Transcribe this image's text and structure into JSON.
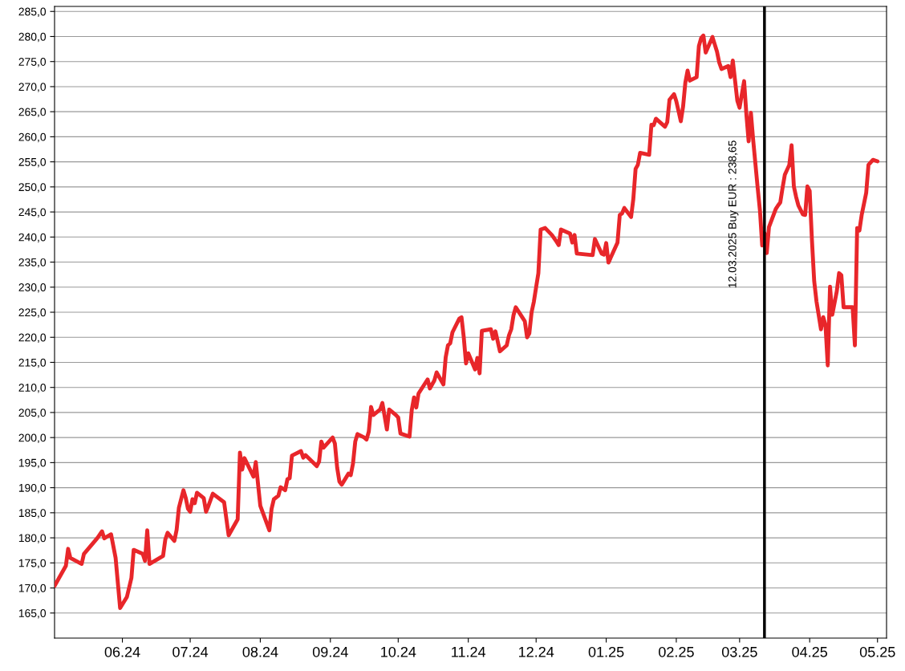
{
  "chart_data": {
    "type": "line",
    "color": "#e8262a",
    "grid": "y",
    "legend": false,
    "marker": "none",
    "line_style": "solid",
    "x": [
      "2024-05-02",
      "2024-05-07",
      "2024-05-08",
      "2024-05-09",
      "2024-05-14",
      "2024-05-15",
      "2024-05-21",
      "2024-05-23",
      "2024-05-24",
      "2024-05-27",
      "2024-05-29",
      "2024-05-31",
      "2024-06-03",
      "2024-06-05",
      "2024-06-06",
      "2024-06-10",
      "2024-06-11",
      "2024-06-12",
      "2024-06-13",
      "2024-06-19",
      "2024-06-20",
      "2024-06-21",
      "2024-06-24",
      "2024-06-25",
      "2024-06-26",
      "2024-06-28",
      "2024-06-29",
      "2024-06-30",
      "2024-07-01",
      "2024-07-02",
      "2024-07-03",
      "2024-07-04",
      "2024-07-07",
      "2024-07-08",
      "2024-07-09",
      "2024-07-11",
      "2024-07-16",
      "2024-07-18",
      "2024-07-22",
      "2024-07-23",
      "2024-07-24",
      "2024-07-25",
      "2024-07-29",
      "2024-07-30",
      "2024-08-01",
      "2024-08-05",
      "2024-08-06",
      "2024-08-07",
      "2024-08-09",
      "2024-08-10",
      "2024-08-12",
      "2024-08-13",
      "2024-08-14",
      "2024-08-15",
      "2024-08-19",
      "2024-08-20",
      "2024-08-21",
      "2024-08-26",
      "2024-08-27",
      "2024-08-28",
      "2024-08-29",
      "2024-09-02",
      "2024-09-03",
      "2024-09-04",
      "2024-09-05",
      "2024-09-06",
      "2024-09-09",
      "2024-09-10",
      "2024-09-11",
      "2024-09-12",
      "2024-09-13",
      "2024-09-16",
      "2024-09-17",
      "2024-09-18",
      "2024-09-19",
      "2024-09-20",
      "2024-09-23",
      "2024-09-24",
      "2024-09-26",
      "2024-09-27",
      "2024-09-30",
      "2024-10-01",
      "2024-10-02",
      "2024-10-06",
      "2024-10-07",
      "2024-10-08",
      "2024-10-09",
      "2024-10-10",
      "2024-10-14",
      "2024-10-15",
      "2024-10-17",
      "2024-10-18",
      "2024-10-21",
      "2024-10-22",
      "2024-10-23",
      "2024-10-24",
      "2024-10-25",
      "2024-10-28",
      "2024-10-29",
      "2024-10-30",
      "2024-10-31",
      "2024-11-01",
      "2024-11-04",
      "2024-11-05",
      "2024-11-06",
      "2024-11-07",
      "2024-11-11",
      "2024-11-12",
      "2024-11-13",
      "2024-11-15",
      "2024-11-18",
      "2024-11-19",
      "2024-11-20",
      "2024-11-21",
      "2024-11-22",
      "2024-11-25",
      "2024-11-26",
      "2024-11-27",
      "2024-11-28",
      "2024-11-29",
      "2024-11-30",
      "2024-12-01",
      "2024-12-02",
      "2024-12-03",
      "2024-12-05",
      "2024-12-08",
      "2024-12-10",
      "2024-12-11",
      "2024-12-12",
      "2024-12-16",
      "2024-12-17",
      "2024-12-18",
      "2024-12-19",
      "2024-12-26",
      "2024-12-27",
      "2024-12-30",
      "2024-12-31",
      "2025-01-01",
      "2025-01-02",
      "2025-01-06",
      "2025-01-07",
      "2025-01-08",
      "2025-01-09",
      "2025-01-12",
      "2025-01-13",
      "2025-01-14",
      "2025-01-15",
      "2025-01-16",
      "2025-01-20",
      "2025-01-21",
      "2025-01-22",
      "2025-01-23",
      "2025-01-27",
      "2025-01-28",
      "2025-01-29",
      "2025-01-31",
      "2025-02-01",
      "2025-02-03",
      "2025-02-04",
      "2025-02-05",
      "2025-02-06",
      "2025-02-07",
      "2025-02-10",
      "2025-02-11",
      "2025-02-12",
      "2025-02-13",
      "2025-02-14",
      "2025-02-17",
      "2025-02-19",
      "2025-02-20",
      "2025-02-21",
      "2025-02-24",
      "2025-02-25",
      "2025-02-26",
      "2025-02-27",
      "2025-02-28",
      "2025-03-01",
      "2025-03-02",
      "2025-03-03",
      "2025-03-04",
      "2025-03-05",
      "2025-03-06",
      "2025-03-07",
      "2025-03-08",
      "2025-03-09",
      "2025-03-10",
      "2025-03-11",
      "2025-03-12",
      "2025-03-13",
      "2025-03-14",
      "2025-03-15",
      "2025-03-17",
      "2025-03-18",
      "2025-03-19",
      "2025-03-20",
      "2025-03-21",
      "2025-03-23",
      "2025-03-24",
      "2025-03-25",
      "2025-03-26",
      "2025-03-27",
      "2025-03-29",
      "2025-03-30",
      "2025-03-31",
      "2025-04-01",
      "2025-04-02",
      "2025-04-03",
      "2025-04-04",
      "2025-04-06",
      "2025-04-07",
      "2025-04-08",
      "2025-04-09",
      "2025-04-10",
      "2025-04-11",
      "2025-04-13",
      "2025-04-14",
      "2025-04-15",
      "2025-04-16",
      "2025-04-20",
      "2025-04-21",
      "2025-04-22",
      "2025-04-23",
      "2025-04-24",
      "2025-04-26",
      "2025-04-27",
      "2025-04-29",
      "2025-05-01"
    ],
    "values": [
      170.4,
      174.4,
      177.8,
      176.0,
      174.8,
      176.8,
      180.0,
      181.3,
      179.9,
      180.7,
      176.0,
      166.0,
      168.2,
      172.0,
      177.6,
      176.8,
      175.4,
      181.5,
      174.8,
      176.4,
      179.7,
      181.0,
      179.4,
      181.6,
      186.0,
      189.5,
      188.0,
      185.8,
      185.2,
      187.7,
      186.9,
      189.0,
      187.9,
      185.2,
      186.3,
      188.8,
      187.1,
      180.5,
      183.7,
      197.0,
      193.6,
      195.9,
      192.2,
      195.1,
      186.4,
      181.5,
      185.8,
      187.7,
      188.4,
      190.1,
      189.5,
      191.7,
      191.9,
      196.4,
      197.3,
      196.0,
      196.5,
      194.3,
      195.2,
      199.2,
      198.0,
      200.0,
      198.8,
      194.0,
      191.2,
      190.6,
      192.8,
      192.5,
      194.8,
      199.2,
      200.7,
      200.0,
      199.6,
      201.2,
      206.1,
      204.5,
      205.6,
      206.9,
      201.6,
      205.6,
      204.5,
      204.0,
      200.8,
      200.2,
      205.5,
      208.0,
      206.0,
      208.8,
      211.6,
      209.8,
      211.4,
      213.0,
      210.6,
      216.0,
      218.4,
      218.8,
      221.0,
      223.7,
      224.0,
      220.0,
      214.8,
      216.8,
      213.6,
      215.9,
      212.8,
      221.3,
      221.6,
      219.7,
      221.2,
      217.2,
      218.4,
      220.4,
      221.6,
      224.4,
      226.0,
      223.9,
      223.2,
      220.0,
      220.8,
      225.0,
      227.1,
      230.0,
      232.8,
      241.5,
      241.8,
      240.4,
      239.1,
      238.4,
      241.5,
      240.7,
      238.9,
      240.4,
      236.7,
      236.4,
      239.6,
      236.7,
      236.5,
      238.8,
      234.9,
      238.9,
      244.4,
      244.7,
      245.8,
      244.0,
      247.6,
      253.6,
      254.4,
      256.8,
      256.4,
      262.4,
      262.3,
      263.6,
      262.0,
      262.9,
      267.4,
      268.5,
      267.1,
      263.1,
      266.0,
      270.8,
      273.2,
      271.2,
      271.9,
      278.1,
      279.7,
      280.2,
      276.8,
      279.9,
      277.0,
      274.8,
      273.5,
      274.1,
      271.9,
      275.2,
      271.2,
      267.2,
      265.8,
      268.5,
      271.1,
      264.5,
      259.1,
      264.8,
      259.4,
      254.6,
      249.8,
      245.3,
      238.3,
      240.8,
      236.8,
      242.0,
      243.2,
      245.6,
      246.3,
      246.9,
      249.8,
      252.4,
      254.4,
      258.3,
      250.1,
      248.0,
      246.3,
      244.5,
      244.4,
      250.1,
      249.2,
      239.4,
      231.2,
      227.2,
      221.6,
      224.0,
      222.4,
      214.4,
      230.1,
      224.5,
      229.2,
      232.8,
      232.4,
      226.0,
      226.0,
      218.4,
      241.8,
      241.3,
      244.4,
      248.8,
      254.4,
      255.4,
      255.1
    ],
    "xlim": [
      "2024-05-02",
      "2025-05-05"
    ],
    "xticks": [
      {
        "value": "2024-06-01",
        "label": "06.24"
      },
      {
        "value": "2024-07-01",
        "label": "07.24"
      },
      {
        "value": "2024-08-01",
        "label": "08.24"
      },
      {
        "value": "2024-09-01",
        "label": "09.24"
      },
      {
        "value": "2024-10-01",
        "label": "10.24"
      },
      {
        "value": "2024-11-01",
        "label": "11.24"
      },
      {
        "value": "2024-12-01",
        "label": "12.24"
      },
      {
        "value": "2025-01-01",
        "label": "01.25"
      },
      {
        "value": "2025-02-01",
        "label": "02.25"
      },
      {
        "value": "2025-03-01",
        "label": "03.25"
      },
      {
        "value": "2025-04-01",
        "label": "04.25"
      },
      {
        "value": "2025-05-01",
        "label": "05.25"
      }
    ],
    "ylim": [
      160,
      286
    ],
    "yticks": [
      {
        "value": 165,
        "label": "165,0"
      },
      {
        "value": 170,
        "label": "170,0"
      },
      {
        "value": 175,
        "label": "175,0"
      },
      {
        "value": 180,
        "label": "180,0"
      },
      {
        "value": 185,
        "label": "185,0"
      },
      {
        "value": 190,
        "label": "190,0"
      },
      {
        "value": 195,
        "label": "195,0"
      },
      {
        "value": 200,
        "label": "200,0"
      },
      {
        "value": 205,
        "label": "205,0"
      },
      {
        "value": 210,
        "label": "210,0"
      },
      {
        "value": 215,
        "label": "215,0"
      },
      {
        "value": 220,
        "label": "220,0"
      },
      {
        "value": 225,
        "label": "225,0"
      },
      {
        "value": 230,
        "label": "230,0"
      },
      {
        "value": 235,
        "label": "235,0"
      },
      {
        "value": 240,
        "label": "240,0"
      },
      {
        "value": 245,
        "label": "245,0"
      },
      {
        "value": 250,
        "label": "250,0"
      },
      {
        "value": 255,
        "label": "255,0"
      },
      {
        "value": 260,
        "label": "260,0"
      },
      {
        "value": 265,
        "label": "265,0"
      },
      {
        "value": 270,
        "label": "270,0"
      },
      {
        "value": 275,
        "label": "275,0"
      },
      {
        "value": 280,
        "label": "280,0"
      },
      {
        "value": 285,
        "label": "285,0"
      }
    ],
    "ref_lines": [
      {
        "axis": "x",
        "value": "2025-03-12",
        "label": "12.03.2025 Buy EUR : 238,65",
        "color": "#000000",
        "line_style": "solid"
      }
    ]
  }
}
